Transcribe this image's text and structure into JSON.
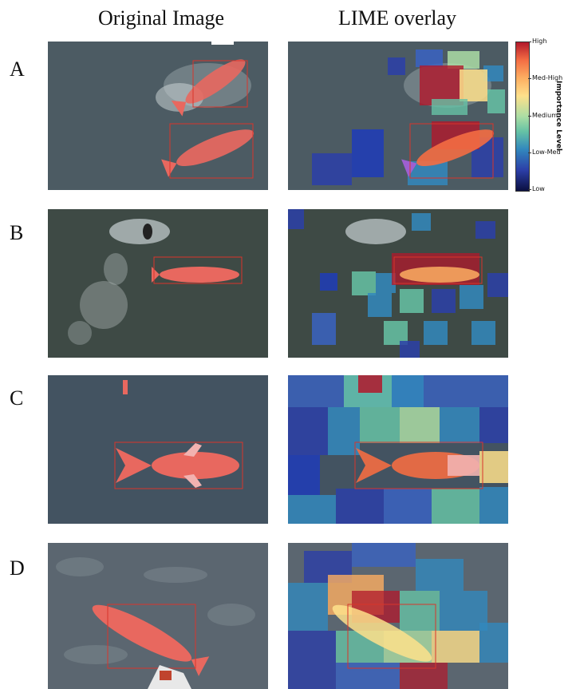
{
  "headers": {
    "left": "Original Image",
    "right": "LIME overlay"
  },
  "rows": [
    {
      "label": "A"
    },
    {
      "label": "B"
    },
    {
      "label": "C"
    },
    {
      "label": "D"
    }
  ],
  "colorbar": {
    "title": "Importance Level",
    "ticks": [
      "High",
      "Med-High",
      "Medium",
      "Low-Med",
      "Low"
    ],
    "colors": [
      "#b2182b",
      "#fdae61",
      "#abdda4",
      "#3288bd",
      "#0b1040"
    ]
  },
  "colors": {
    "water": "#4a5a63",
    "whale_mask": "#e8685f",
    "box": "#d9342b"
  }
}
